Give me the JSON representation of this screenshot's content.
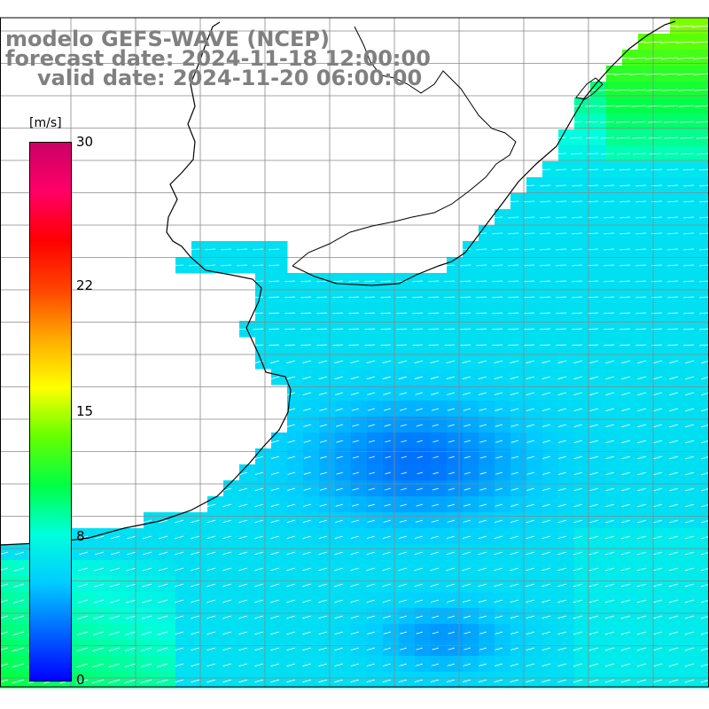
{
  "header": {
    "model": "modelo GEFS-WAVE (NCEP)",
    "forecast": "forecast date: 2024-11-18 12:00:00",
    "valid": "valid date: 2024-11-20 06:00:00"
  },
  "colorbar": {
    "unit": "[m/s]",
    "ticks": [
      {
        "value": 30,
        "label": "30"
      },
      {
        "value": 22,
        "label": "22"
      },
      {
        "value": 15,
        "label": "15"
      },
      {
        "value": 8,
        "label": "8"
      },
      {
        "value": 0,
        "label": "0"
      }
    ],
    "colors": [
      "#0000ff",
      "#0066ff",
      "#00ccff",
      "#00ffdd",
      "#00ff44",
      "#66ff00",
      "#ffff00",
      "#ffaa00",
      "#ff4400",
      "#ff0000",
      "#ff0066",
      "#cc0066"
    ]
  },
  "colors": {
    "land": "#ffffff",
    "coast": "#000000",
    "grid": "#888888",
    "arrow": "#ffffff"
  }
}
